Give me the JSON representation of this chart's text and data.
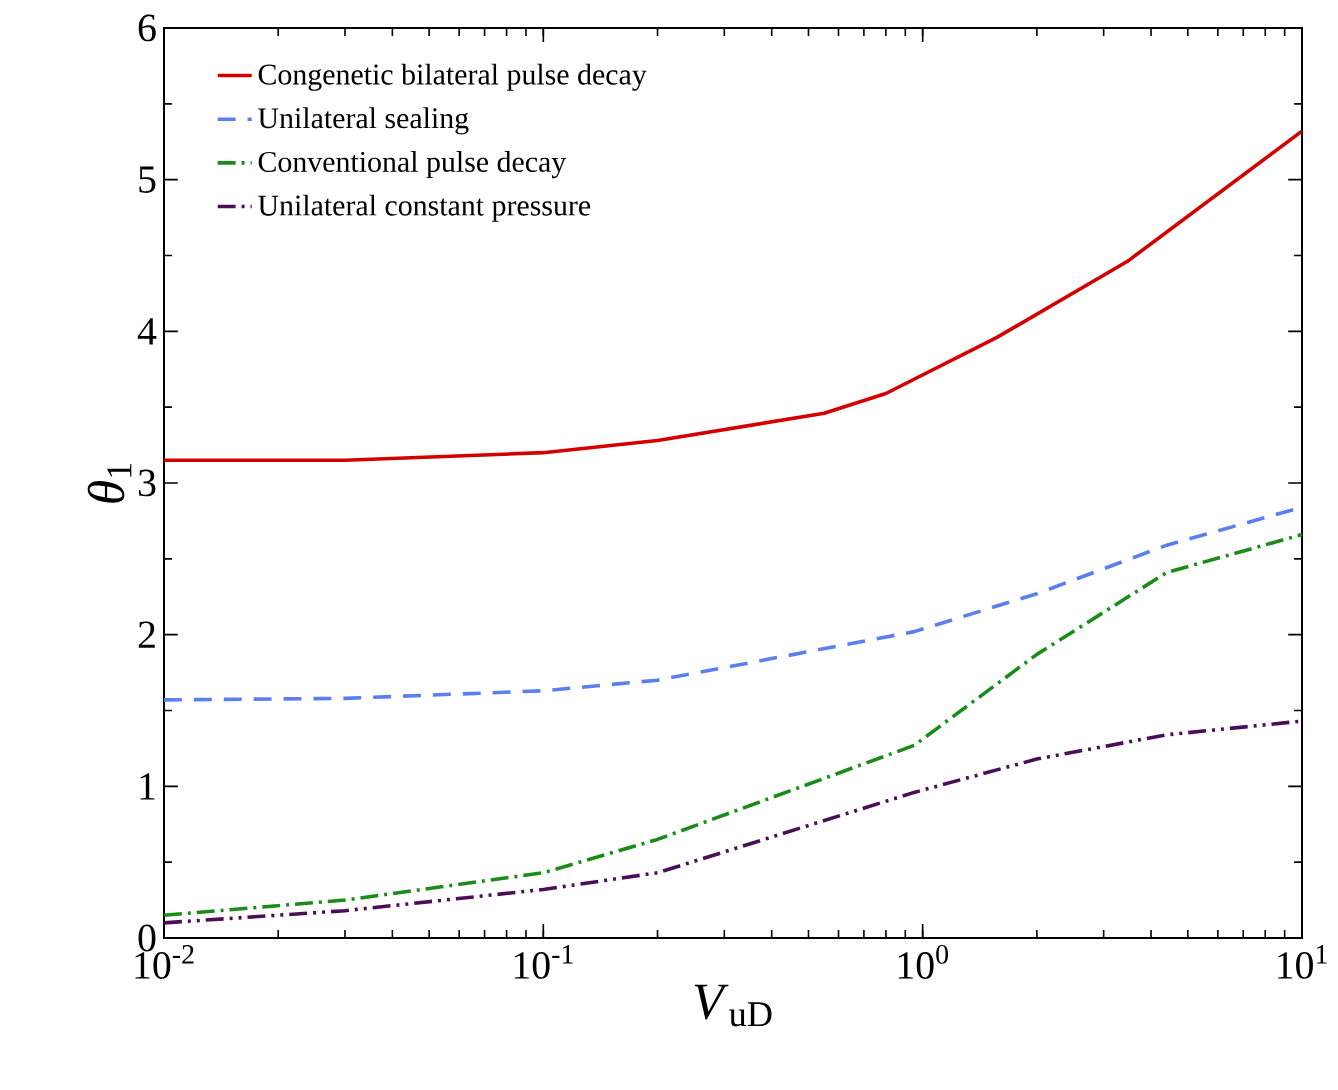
{
  "chart_data": {
    "type": "line",
    "xlabel": "*V*$_{uD}$",
    "ylabel": "*θ*$_{1}$",
    "log": "x",
    "xlim": [
      0.01,
      10
    ],
    "ylim": [
      0,
      6
    ],
    "xticks": [
      {
        "value": 0.01,
        "label": "10$^{-2}$"
      },
      {
        "value": 0.1,
        "label": "10$^{-1}$"
      },
      {
        "value": 1,
        "label": "10$^{0}$"
      },
      {
        "value": 10,
        "label": "10$^{1}$"
      }
    ],
    "yticks": [
      0,
      1,
      2,
      3,
      4,
      5,
      6
    ],
    "grid": false,
    "legend": "top left",
    "series": [
      {
        "name": "Congenetic bilateral pulse decay",
        "color": "#d40000",
        "line_style": "solid",
        "x": [
          0.01,
          0.03,
          0.1,
          0.2,
          0.55,
          0.8,
          1.57,
          3.46,
          10
        ],
        "values": [
          3.15,
          3.15,
          3.2,
          3.28,
          3.46,
          3.59,
          3.96,
          4.46,
          5.32
        ]
      },
      {
        "name": "Unilateral sealing",
        "color": "#5b7ff0",
        "line_style": "dashed",
        "x": [
          0.01,
          0.03,
          0.1,
          0.2,
          0.95,
          2.0,
          4.4,
          10
        ],
        "values": [
          1.57,
          1.58,
          1.63,
          1.7,
          2.02,
          2.27,
          2.59,
          2.84
        ]
      },
      {
        "name": "Conventional pulse decay",
        "color": "#1a8c1a",
        "line_style": "dashdot",
        "x": [
          0.01,
          0.03,
          0.1,
          0.2,
          0.95,
          2.0,
          4.4,
          10
        ],
        "values": [
          0.15,
          0.25,
          0.43,
          0.65,
          1.27,
          1.87,
          2.41,
          2.66
        ]
      },
      {
        "name": "Unilateral constant pressure",
        "color": "#4b0f5a",
        "line_style": "dashdotdot",
        "x": [
          0.01,
          0.03,
          0.1,
          0.2,
          0.95,
          2.0,
          4.4,
          10
        ],
        "values": [
          0.1,
          0.18,
          0.32,
          0.43,
          0.96,
          1.18,
          1.34,
          1.43
        ]
      }
    ]
  }
}
